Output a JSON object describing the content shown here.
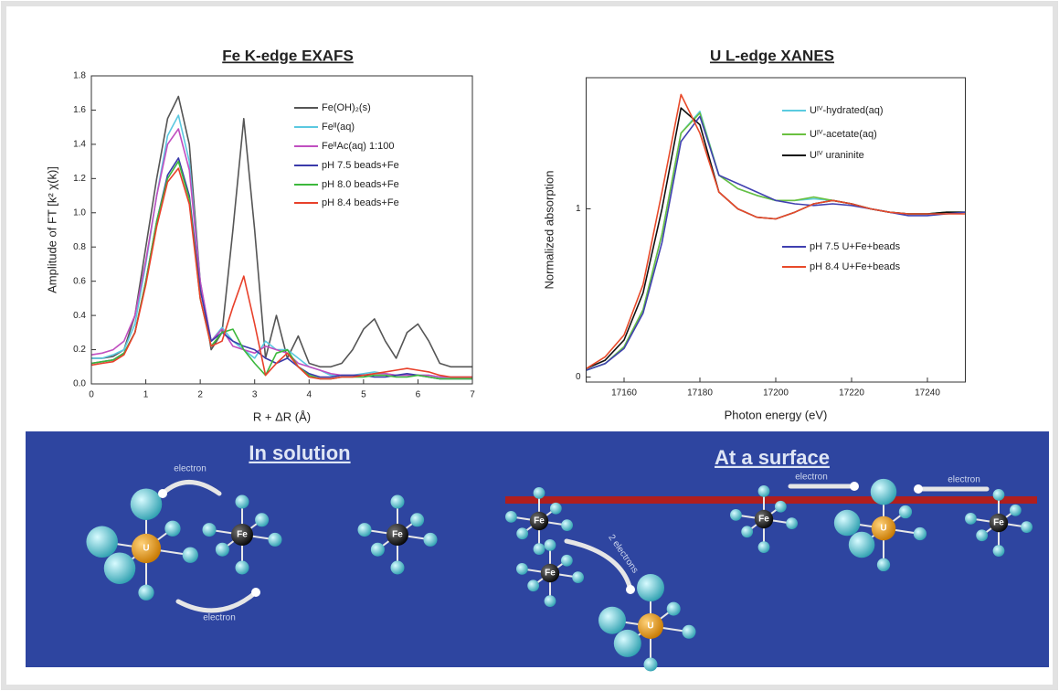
{
  "chart_data": [
    {
      "type": "line",
      "title": "Fe K-edge EXAFS",
      "x_label": "R + ΔR (Å)",
      "y_label": "Amplitude of FT [k² χ(k)]",
      "x": [
        0,
        0.2,
        0.4,
        0.6,
        0.8,
        1.0,
        1.2,
        1.4,
        1.6,
        1.8,
        2.0,
        2.2,
        2.4,
        2.6,
        2.8,
        3.0,
        3.2,
        3.4,
        3.6,
        3.8,
        4.0,
        4.2,
        4.4,
        4.6,
        4.8,
        5.0,
        5.2,
        5.4,
        5.6,
        5.8,
        6.0,
        6.2,
        6.4,
        6.6,
        6.8,
        7.0
      ],
      "xlim": [
        0,
        7
      ],
      "xticks": [
        0,
        1,
        2,
        3,
        4,
        5,
        6,
        7
      ],
      "ylim": [
        0,
        1.8
      ],
      "yticks": [
        {
          "value": 0,
          "label": "0.0"
        },
        0.2,
        0.4,
        0.6,
        0.8,
        {
          "value": 1,
          "label": "1.0"
        },
        1.2,
        1.4,
        1.6,
        1.8
      ],
      "grid": false,
      "legend": "upper right",
      "series": [
        {
          "name": "Fe(OH)₂(s)",
          "color": "#555555",
          "values": [
            0.15,
            0.15,
            0.16,
            0.2,
            0.4,
            0.8,
            1.2,
            1.55,
            1.68,
            1.4,
            0.6,
            0.2,
            0.3,
            0.9,
            1.55,
            0.9,
            0.15,
            0.4,
            0.15,
            0.28,
            0.12,
            0.1,
            0.1,
            0.12,
            0.2,
            0.32,
            0.38,
            0.25,
            0.15,
            0.3,
            0.35,
            0.25,
            0.12,
            0.1,
            0.1,
            0.1
          ]
        },
        {
          "name": "Feᴵᴵ(aq)",
          "color": "#5bc8e0",
          "values": [
            0.15,
            0.15,
            0.17,
            0.2,
            0.35,
            0.7,
            1.1,
            1.45,
            1.57,
            1.3,
            0.6,
            0.25,
            0.33,
            0.25,
            0.2,
            0.15,
            0.25,
            0.2,
            0.2,
            0.15,
            0.1,
            0.08,
            0.05,
            0.05,
            0.05,
            0.06,
            0.07,
            0.06,
            0.05,
            0.05,
            0.05,
            0.05,
            0.04,
            0.04,
            0.04,
            0.04
          ]
        },
        {
          "name": "FeᴵᴵAc(aq) 1:100",
          "color": "#c04fc0",
          "values": [
            0.17,
            0.18,
            0.2,
            0.25,
            0.4,
            0.72,
            1.1,
            1.4,
            1.49,
            1.25,
            0.6,
            0.25,
            0.32,
            0.22,
            0.2,
            0.18,
            0.22,
            0.2,
            0.18,
            0.12,
            0.1,
            0.08,
            0.06,
            0.05,
            0.05,
            0.05,
            0.06,
            0.06,
            0.05,
            0.05,
            0.05,
            0.05,
            0.04,
            0.04,
            0.04,
            0.04
          ]
        },
        {
          "name": "pH 7.5 beads+Fe",
          "color": "#3a3aaa",
          "values": [
            0.12,
            0.13,
            0.14,
            0.18,
            0.3,
            0.6,
            0.95,
            1.22,
            1.32,
            1.1,
            0.55,
            0.25,
            0.3,
            0.25,
            0.22,
            0.2,
            0.15,
            0.12,
            0.15,
            0.1,
            0.06,
            0.04,
            0.04,
            0.05,
            0.05,
            0.05,
            0.04,
            0.04,
            0.05,
            0.06,
            0.05,
            0.04,
            0.03,
            0.03,
            0.03,
            0.03
          ]
        },
        {
          "name": "pH 8.0 beads+Fe",
          "color": "#3cb83c",
          "values": [
            0.12,
            0.13,
            0.14,
            0.18,
            0.3,
            0.6,
            0.95,
            1.2,
            1.3,
            1.08,
            0.5,
            0.22,
            0.3,
            0.32,
            0.2,
            0.12,
            0.05,
            0.18,
            0.2,
            0.1,
            0.05,
            0.03,
            0.03,
            0.04,
            0.04,
            0.04,
            0.05,
            0.05,
            0.04,
            0.04,
            0.05,
            0.04,
            0.03,
            0.03,
            0.03,
            0.03
          ]
        },
        {
          "name": "pH 8.4 beads+Fe",
          "color": "#e8402a",
          "values": [
            0.11,
            0.12,
            0.13,
            0.17,
            0.3,
            0.58,
            0.92,
            1.18,
            1.26,
            1.05,
            0.5,
            0.22,
            0.25,
            0.45,
            0.63,
            0.35,
            0.05,
            0.12,
            0.18,
            0.1,
            0.04,
            0.03,
            0.03,
            0.04,
            0.04,
            0.05,
            0.06,
            0.07,
            0.08,
            0.09,
            0.08,
            0.07,
            0.05,
            0.04,
            0.04,
            0.04
          ]
        }
      ]
    },
    {
      "type": "line",
      "title": "U L-edge XANES",
      "x_label": "Photon energy (eV)",
      "y_label": "Normalized absorption",
      "x": [
        17150,
        17155,
        17160,
        17165,
        17170,
        17175,
        17180,
        17185,
        17190,
        17195,
        17200,
        17205,
        17210,
        17215,
        17220,
        17225,
        17230,
        17235,
        17240,
        17245,
        17250
      ],
      "xlim": [
        17150,
        17250
      ],
      "xticks": [
        17160,
        17180,
        17200,
        17220,
        17240
      ],
      "ylim": [
        -0.03,
        1.78
      ],
      "yticks": [
        0,
        1
      ],
      "grid": false,
      "legend": "right",
      "series": [
        {
          "name": "Uᴵⱽ-hydrated(aq)",
          "color": "#5bcbe0",
          "values": [
            0.04,
            0.08,
            0.18,
            0.4,
            0.85,
            1.45,
            1.58,
            1.2,
            1.12,
            1.08,
            1.05,
            1.05,
            1.06,
            1.05,
            1.03,
            1.0,
            0.98,
            0.97,
            0.97,
            0.98,
            0.98
          ]
        },
        {
          "name": "Uᴵⱽ-acetate(aq)",
          "color": "#6ac040",
          "values": [
            0.04,
            0.08,
            0.18,
            0.4,
            0.85,
            1.45,
            1.57,
            1.2,
            1.12,
            1.08,
            1.05,
            1.05,
            1.07,
            1.05,
            1.03,
            1.0,
            0.98,
            0.97,
            0.97,
            0.98,
            0.98
          ]
        },
        {
          "name": "Uᴵⱽ uraninite",
          "color": "#111111",
          "values": [
            0.05,
            0.1,
            0.22,
            0.5,
            1.0,
            1.6,
            1.5,
            1.1,
            1.0,
            0.95,
            0.94,
            0.98,
            1.03,
            1.05,
            1.03,
            1.0,
            0.98,
            0.97,
            0.97,
            0.98,
            0.98
          ]
        },
        {
          "name": "pH 7.5 U+Fe+beads",
          "color": "#4040b0",
          "values": [
            0.04,
            0.08,
            0.17,
            0.38,
            0.8,
            1.4,
            1.55,
            1.2,
            1.15,
            1.1,
            1.05,
            1.03,
            1.02,
            1.03,
            1.02,
            1.0,
            0.98,
            0.96,
            0.96,
            0.97,
            0.98
          ]
        },
        {
          "name": "pH 8.4 U+Fe+beads",
          "color": "#e84a2a",
          "values": [
            0.05,
            0.12,
            0.25,
            0.55,
            1.1,
            1.68,
            1.45,
            1.1,
            1.0,
            0.95,
            0.94,
            0.98,
            1.03,
            1.05,
            1.03,
            1.0,
            0.98,
            0.97,
            0.97,
            0.97,
            0.97
          ]
        }
      ]
    }
  ],
  "diagram": {
    "titles": [
      "In solution",
      "At a surface"
    ],
    "molecules": [
      "U",
      "Fe",
      "Fe",
      "Fe",
      "Fe",
      "U",
      "Fe",
      "U",
      "Fe"
    ],
    "arrows": [
      "electron",
      "electron",
      "2 electrons",
      "electron",
      "electron"
    ]
  }
}
